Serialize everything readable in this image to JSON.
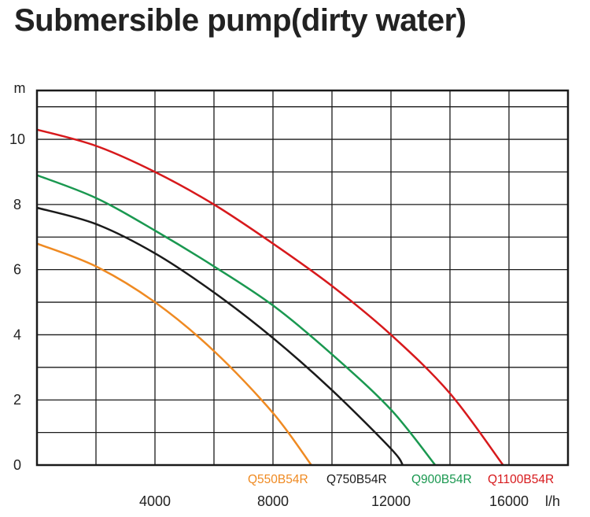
{
  "title": "Submersible pump(dirty water)",
  "chart_data": {
    "type": "line",
    "title": "Submersible pump(dirty water)",
    "xlabel": "",
    "ylabel": "",
    "x_unit": "l/h",
    "y_unit": "m",
    "xlim": [
      0,
      18000
    ],
    "ylim": [
      0,
      11.5
    ],
    "x_ticks": [
      4000,
      8000,
      12000,
      16000
    ],
    "x_tick_labels": [
      "4000",
      "8000",
      "12000",
      "16000"
    ],
    "y_ticks": [
      0,
      2,
      4,
      6,
      8,
      10
    ],
    "y_tick_labels": [
      "0",
      "2",
      "4",
      "6",
      "8",
      "10"
    ],
    "grid": true,
    "legend_position": "bottom",
    "series": [
      {
        "name": "Q550B54R",
        "color": "#ef8a22",
        "x": [
          0,
          2000,
          4000,
          6000,
          8000,
          9300
        ],
        "y": [
          6.8,
          6.1,
          5.0,
          3.5,
          1.6,
          0
        ]
      },
      {
        "name": "Q750B54R",
        "color": "#1a1a1a",
        "x": [
          0,
          2000,
          4000,
          6000,
          8000,
          10000,
          12000,
          12400
        ],
        "y": [
          7.9,
          7.4,
          6.5,
          5.3,
          3.9,
          2.3,
          0.5,
          0
        ]
      },
      {
        "name": "Q900B54R",
        "color": "#1a9850",
        "x": [
          0,
          2000,
          4000,
          6000,
          8000,
          10000,
          12000,
          13500
        ],
        "y": [
          8.9,
          8.2,
          7.2,
          6.1,
          4.9,
          3.4,
          1.7,
          0
        ]
      },
      {
        "name": "Q1100B54R",
        "color": "#d7191c",
        "x": [
          0,
          2000,
          4000,
          6000,
          8000,
          10000,
          12000,
          14000,
          15800
        ],
        "y": [
          10.3,
          9.8,
          9.0,
          8.0,
          6.8,
          5.5,
          4.0,
          2.2,
          0
        ]
      }
    ]
  }
}
